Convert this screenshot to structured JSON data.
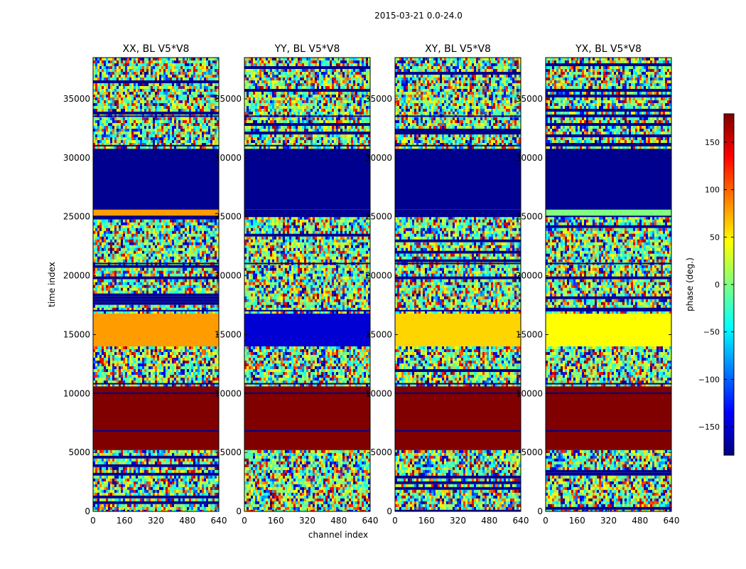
{
  "figure_title": "2015-03-21 0.0-24.0",
  "chart_data": {
    "type": "heatmap",
    "suptitle": "2015-03-21 0.0-24.0",
    "xlabel": "channel index",
    "ylabel": "time index",
    "xlim": [
      0,
      640
    ],
    "ylim": [
      0,
      38500
    ],
    "xticks": [
      "0",
      "160",
      "320",
      "480",
      "640"
    ],
    "yticks": [
      "0",
      "5000",
      "10000",
      "15000",
      "20000",
      "25000",
      "30000",
      "35000"
    ],
    "colormap": "jet",
    "colorbar": {
      "label": "phase (deg.)",
      "range": [
        -180,
        180
      ],
      "ticks": [
        "150",
        "100",
        "50",
        "0",
        "−50",
        "−100",
        "−150"
      ]
    },
    "panels": [
      {
        "title": "XX, BL V5*V8"
      },
      {
        "title": "YY, BL V5*V8"
      },
      {
        "title": "XY, BL V5*V8"
      },
      {
        "title": "YX, BL V5*V8"
      }
    ],
    "bands": [
      {
        "t0": 0,
        "t1": 5200,
        "kind": "noise",
        "phase": [
          0,
          0,
          0,
          0
        ]
      },
      {
        "t0": 5200,
        "t1": 10800,
        "kind": "solid",
        "phase": [
          180,
          180,
          180,
          180
        ]
      },
      {
        "t0": 10800,
        "t1": 14000,
        "kind": "noise",
        "phase": [
          0,
          0,
          0,
          0
        ]
      },
      {
        "t0": 14000,
        "t1": 17000,
        "kind": "solid",
        "phase": [
          80,
          -150,
          60,
          45
        ]
      },
      {
        "t0": 17000,
        "t1": 25000,
        "kind": "noise",
        "phase": [
          0,
          0,
          0,
          0
        ]
      },
      {
        "t0": 25000,
        "t1": 25600,
        "kind": "solid",
        "phase": [
          80,
          -175,
          -175,
          0
        ]
      },
      {
        "t0": 25600,
        "t1": 31000,
        "kind": "solid",
        "phase": [
          -175,
          -175,
          -175,
          -175
        ]
      },
      {
        "t0": 31000,
        "t1": 38500,
        "kind": "noise",
        "phase": [
          0,
          0,
          0,
          0
        ]
      }
    ],
    "flagged_rows": [
      6800,
      10000,
      10800,
      17000,
      21000,
      25000,
      31000,
      33500
    ]
  }
}
